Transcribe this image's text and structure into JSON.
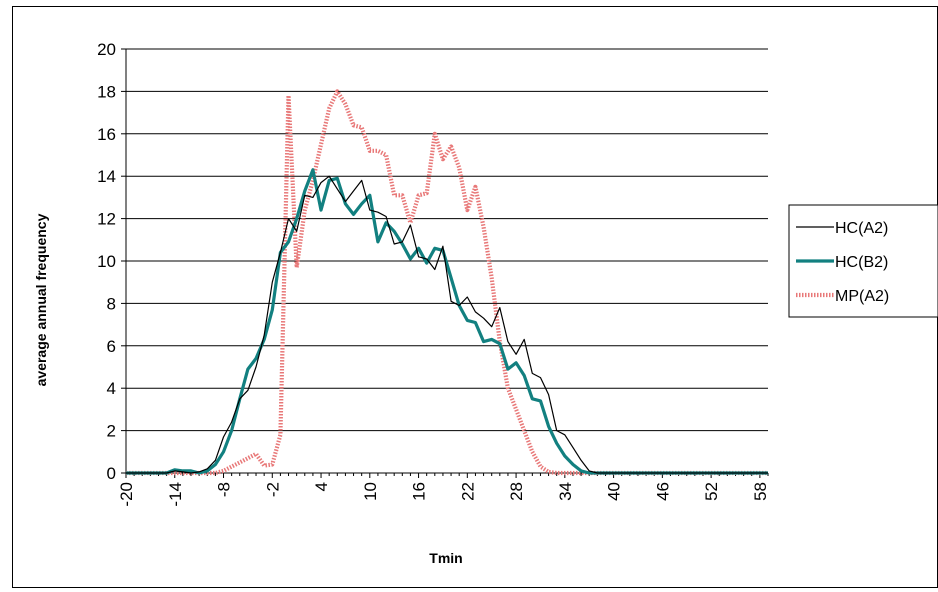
{
  "chart_data": {
    "type": "line",
    "title": "",
    "xlabel": "Tmin",
    "ylabel": "average annual frequency",
    "ylim": [
      0,
      20
    ],
    "xlim": [
      -20,
      59
    ],
    "grid": "horizontal",
    "legend_position": "right",
    "x_tick_labels": [
      "-20",
      "-14",
      "-8",
      "-2",
      "4",
      "10",
      "16",
      "22",
      "28",
      "34",
      "40",
      "46",
      "52",
      "58"
    ],
    "x_tick_values": [
      -20,
      -14,
      -8,
      -2,
      4,
      10,
      16,
      22,
      28,
      34,
      40,
      46,
      52,
      58
    ],
    "y_ticks": [
      0,
      2,
      4,
      6,
      8,
      10,
      12,
      14,
      16,
      18,
      20
    ],
    "series": [
      {
        "name": "HC(A2)",
        "color": "#000000",
        "points": [
          [
            -20,
            0
          ],
          [
            -19,
            0
          ],
          [
            -18,
            0
          ],
          [
            -17,
            0
          ],
          [
            -16,
            0
          ],
          [
            -15,
            0
          ],
          [
            -14,
            0.1
          ],
          [
            -13,
            0.05
          ],
          [
            -12,
            0
          ],
          [
            -11,
            0.05
          ],
          [
            -10,
            0.2
          ],
          [
            -9,
            0.6
          ],
          [
            -8,
            1.7
          ],
          [
            -7,
            2.4
          ],
          [
            -6,
            3.5
          ],
          [
            -5,
            3.9
          ],
          [
            -4,
            5.0
          ],
          [
            -3,
            6.5
          ],
          [
            -2,
            9.0
          ],
          [
            -1,
            10.4
          ],
          [
            0,
            12.0
          ],
          [
            1,
            11.4
          ],
          [
            2,
            13.1
          ],
          [
            3,
            13.0
          ],
          [
            4,
            13.7
          ],
          [
            5,
            14.0
          ],
          [
            6,
            13.4
          ],
          [
            7,
            12.8
          ],
          [
            8,
            13.3
          ],
          [
            9,
            13.8
          ],
          [
            10,
            12.4
          ],
          [
            11,
            12.3
          ],
          [
            12,
            12.1
          ],
          [
            13,
            10.8
          ],
          [
            14,
            10.9
          ],
          [
            15,
            11.7
          ],
          [
            16,
            10.2
          ],
          [
            17,
            10.1
          ],
          [
            18,
            9.6
          ],
          [
            19,
            10.7
          ],
          [
            20,
            8.1
          ],
          [
            21,
            7.9
          ],
          [
            22,
            8.3
          ],
          [
            23,
            7.6
          ],
          [
            24,
            7.3
          ],
          [
            25,
            6.9
          ],
          [
            26,
            7.8
          ],
          [
            27,
            6.2
          ],
          [
            28,
            5.6
          ],
          [
            29,
            6.3
          ],
          [
            30,
            4.7
          ],
          [
            31,
            4.5
          ],
          [
            32,
            3.7
          ],
          [
            33,
            2.0
          ],
          [
            34,
            1.8
          ],
          [
            35,
            1.2
          ],
          [
            36,
            0.6
          ],
          [
            37,
            0.1
          ],
          [
            38,
            0
          ],
          [
            39,
            0
          ],
          [
            40,
            0
          ],
          [
            42,
            0
          ],
          [
            44,
            0
          ],
          [
            46,
            0
          ],
          [
            48,
            0
          ],
          [
            50,
            0
          ],
          [
            52,
            0
          ],
          [
            54,
            0
          ],
          [
            56,
            0
          ],
          [
            58,
            0
          ],
          [
            59,
            0
          ]
        ]
      },
      {
        "name": "HC(B2)",
        "color": "#128080",
        "points": [
          [
            -20,
            0
          ],
          [
            -19,
            0
          ],
          [
            -18,
            0
          ],
          [
            -17,
            0
          ],
          [
            -16,
            0
          ],
          [
            -15,
            0
          ],
          [
            -14,
            0.15
          ],
          [
            -13,
            0.1
          ],
          [
            -12,
            0.1
          ],
          [
            -11,
            0
          ],
          [
            -10,
            0.1
          ],
          [
            -9,
            0.4
          ],
          [
            -8,
            1.0
          ],
          [
            -7,
            2.0
          ],
          [
            -6,
            3.5
          ],
          [
            -5,
            4.9
          ],
          [
            -4,
            5.4
          ],
          [
            -3,
            6.3
          ],
          [
            -2,
            7.7
          ],
          [
            -1,
            10.4
          ],
          [
            0,
            10.9
          ],
          [
            1,
            12.0
          ],
          [
            2,
            13.3
          ],
          [
            3,
            14.3
          ],
          [
            4,
            12.4
          ],
          [
            5,
            13.8
          ],
          [
            6,
            13.9
          ],
          [
            7,
            12.7
          ],
          [
            8,
            12.2
          ],
          [
            9,
            12.7
          ],
          [
            10,
            13.1
          ],
          [
            11,
            10.9
          ],
          [
            12,
            11.8
          ],
          [
            13,
            11.4
          ],
          [
            14,
            10.8
          ],
          [
            15,
            10.1
          ],
          [
            16,
            10.6
          ],
          [
            17,
            9.9
          ],
          [
            18,
            10.6
          ],
          [
            19,
            10.5
          ],
          [
            20,
            9.2
          ],
          [
            21,
            7.9
          ],
          [
            22,
            7.2
          ],
          [
            23,
            7.1
          ],
          [
            24,
            6.2
          ],
          [
            25,
            6.3
          ],
          [
            26,
            6.1
          ],
          [
            27,
            4.9
          ],
          [
            28,
            5.2
          ],
          [
            29,
            4.6
          ],
          [
            30,
            3.5
          ],
          [
            31,
            3.4
          ],
          [
            32,
            2.2
          ],
          [
            33,
            1.4
          ],
          [
            34,
            0.8
          ],
          [
            35,
            0.4
          ],
          [
            36,
            0.1
          ],
          [
            37,
            0
          ],
          [
            38,
            0
          ],
          [
            40,
            0
          ],
          [
            42,
            0
          ],
          [
            44,
            0
          ],
          [
            46,
            0
          ],
          [
            48,
            0
          ],
          [
            50,
            0
          ],
          [
            52,
            0
          ],
          [
            54,
            0
          ],
          [
            56,
            0
          ],
          [
            58,
            0
          ],
          [
            59,
            0
          ]
        ]
      },
      {
        "name": "MP(A2)",
        "color": "#e87878",
        "points": [
          [
            -20,
            0
          ],
          [
            -18,
            0
          ],
          [
            -16,
            0
          ],
          [
            -14,
            0
          ],
          [
            -12,
            0
          ],
          [
            -11,
            0
          ],
          [
            -10,
            0
          ],
          [
            -9,
            0
          ],
          [
            -8,
            0.1
          ],
          [
            -7,
            0.3
          ],
          [
            -6,
            0.5
          ],
          [
            -5,
            0.7
          ],
          [
            -4,
            0.9
          ],
          [
            -3,
            0.35
          ],
          [
            -2,
            0.4
          ],
          [
            -1,
            1.8
          ],
          [
            0,
            17.8
          ],
          [
            1,
            9.7
          ],
          [
            2,
            12.4
          ],
          [
            3,
            13.8
          ],
          [
            4,
            15.5
          ],
          [
            5,
            17.2
          ],
          [
            6,
            18.0
          ],
          [
            7,
            17.4
          ],
          [
            8,
            16.4
          ],
          [
            9,
            16.3
          ],
          [
            10,
            15.2
          ],
          [
            11,
            15.2
          ],
          [
            12,
            15.0
          ],
          [
            13,
            13.1
          ],
          [
            14,
            13.1
          ],
          [
            15,
            11.8
          ],
          [
            16,
            13.1
          ],
          [
            17,
            13.2
          ],
          [
            18,
            16.0
          ],
          [
            19,
            14.8
          ],
          [
            20,
            15.4
          ],
          [
            21,
            14.4
          ],
          [
            22,
            12.4
          ],
          [
            23,
            13.5
          ],
          [
            24,
            11.6
          ],
          [
            25,
            9.2
          ],
          [
            26,
            6.2
          ],
          [
            27,
            4.0
          ],
          [
            28,
            3.0
          ],
          [
            29,
            2.0
          ],
          [
            30,
            1.0
          ],
          [
            31,
            0.3
          ],
          [
            32,
            0.05
          ],
          [
            33,
            0
          ],
          [
            34,
            0
          ],
          [
            36,
            0
          ],
          [
            38,
            0
          ],
          [
            40,
            0
          ],
          [
            42,
            0
          ],
          [
            44,
            0
          ],
          [
            46,
            0
          ],
          [
            48,
            0
          ],
          [
            50,
            0
          ],
          [
            52,
            0
          ],
          [
            54,
            0
          ],
          [
            56,
            0
          ],
          [
            58,
            0
          ],
          [
            59,
            0
          ]
        ]
      }
    ]
  }
}
